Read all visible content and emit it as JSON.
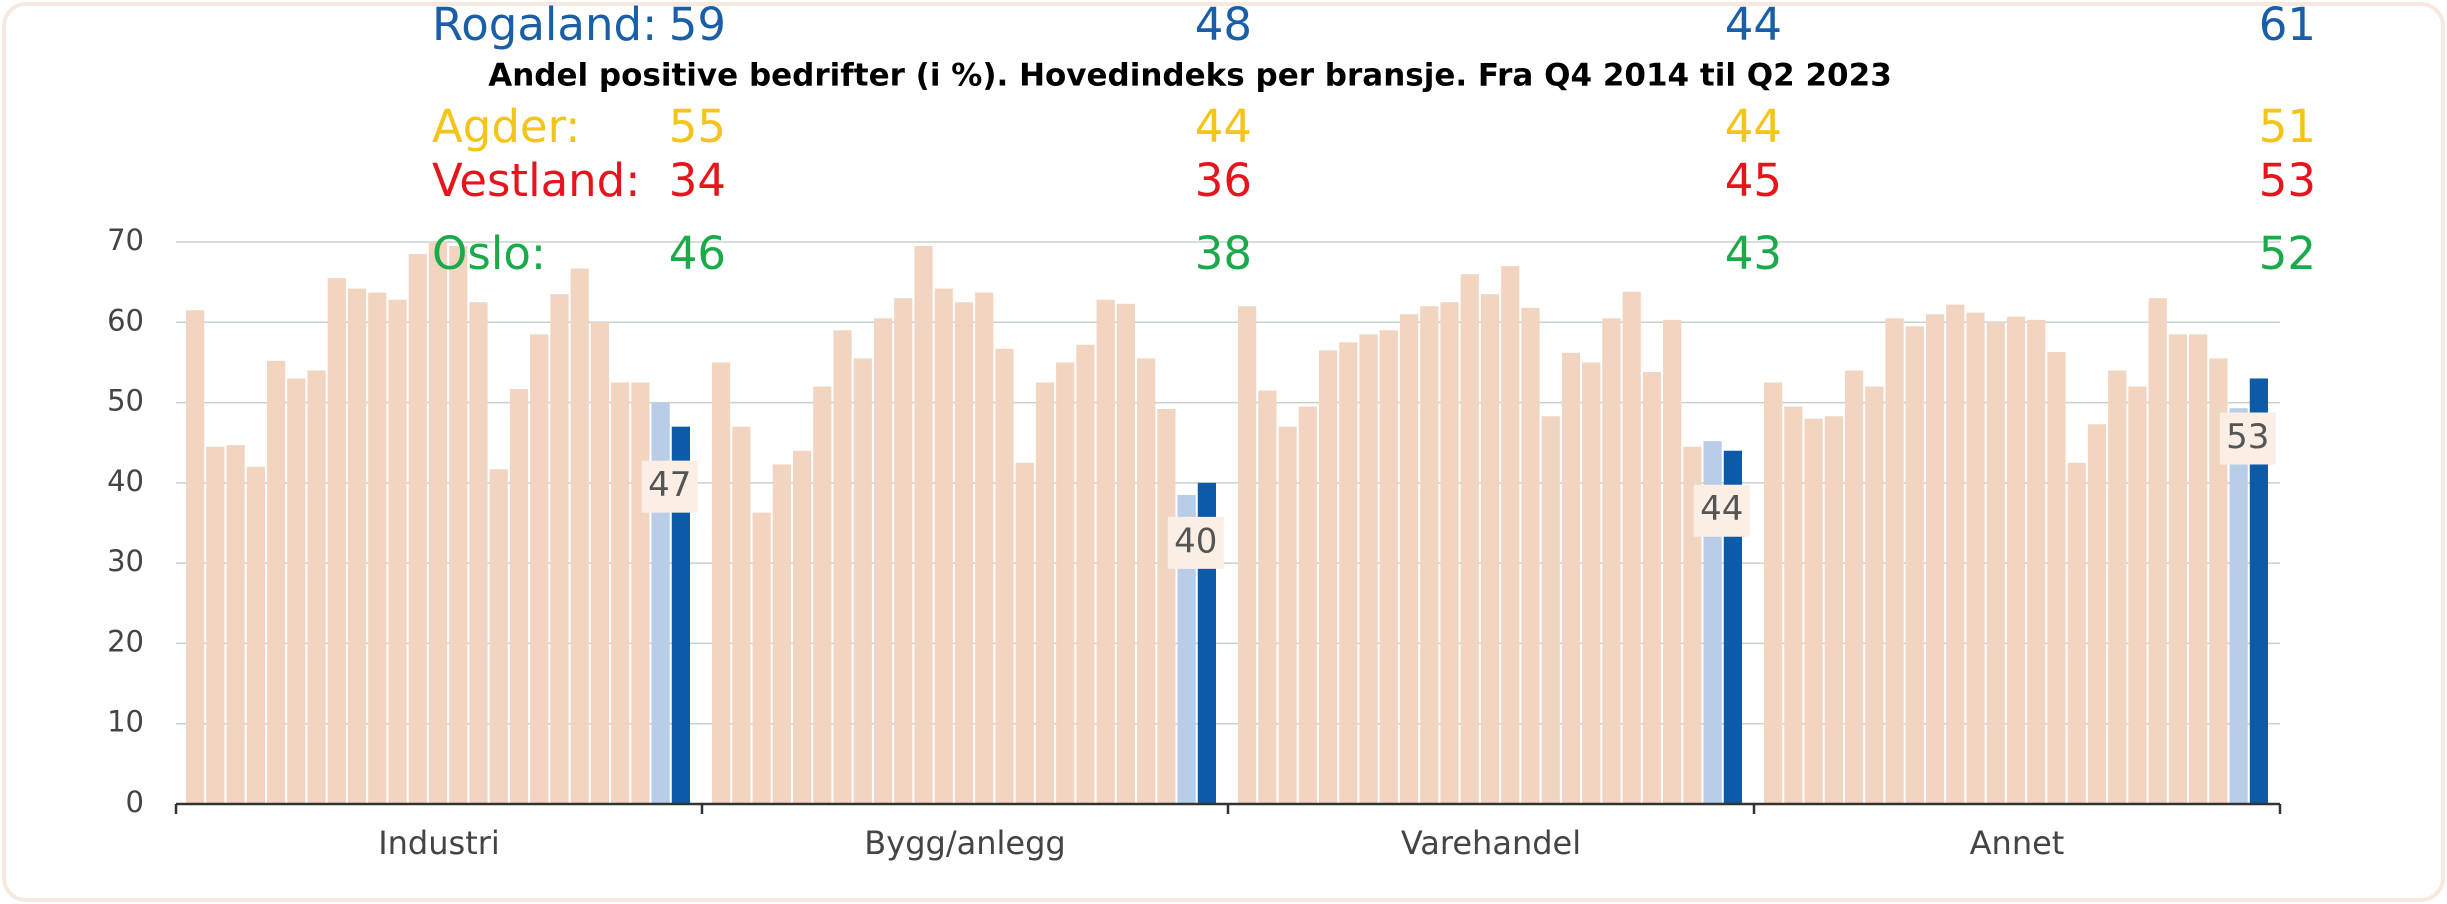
{
  "chart_data": {
    "type": "bar",
    "title": "Andel positive bedrifter (i %). Hovedindeks per bransje. Fra Q4 2014 til Q2 2023",
    "categories": [
      "Industri",
      "Bygg/anlegg",
      "Varehandel",
      "Annet"
    ],
    "groups": [
      {
        "values": [
          61.5,
          44.5,
          44.7,
          42,
          55.2,
          53,
          54,
          65.5,
          64.2,
          63.7,
          62.8,
          68.5,
          70,
          69.5,
          62.5,
          41.7,
          51.7,
          58.5,
          63.5,
          66.7,
          60,
          52.5,
          52.5,
          50,
          47
        ]
      },
      {
        "values": [
          55,
          47,
          36.3,
          42.3,
          44,
          52,
          59,
          55.5,
          60.5,
          63,
          69.5,
          64.2,
          62.5,
          63.7,
          56.7,
          42.5,
          52.5,
          55,
          57.2,
          62.8,
          62.3,
          55.5,
          49.2,
          38.5,
          40
        ]
      },
      {
        "values": [
          62,
          51.5,
          47,
          49.5,
          56.5,
          57.5,
          58.5,
          59,
          61,
          62,
          62.5,
          66,
          63.5,
          67,
          61.8,
          48.3,
          56.2,
          55,
          60.5,
          63.8,
          53.8,
          60.3,
          44.5,
          45.2,
          44
        ]
      },
      {
        "values": [
          52.5,
          49.5,
          48,
          48.3,
          54,
          52,
          60.5,
          59.5,
          61,
          62.2,
          61.2,
          60,
          60.7,
          60.3,
          56.3,
          42.5,
          47.3,
          54,
          52,
          63,
          58.5,
          58.5,
          55.5,
          49.3,
          53
        ]
      }
    ],
    "color": "#f2d5c0",
    "previous_color": "#b8cde8",
    "latest_color": "#0b5ba8",
    "ylim": [
      0,
      70
    ],
    "yticks": [
      0,
      10,
      20,
      30,
      40,
      50,
      60,
      70
    ],
    "grid": true,
    "annotations": [
      {
        "name": "Rogaland:",
        "color": "#1a5ea8",
        "values": [
          "59",
          "48",
          "44",
          "61"
        ]
      },
      {
        "name": "Agder:",
        "color": "#f5c41a",
        "values": [
          "55",
          "44",
          "44",
          "51"
        ]
      },
      {
        "name": "Vestland:",
        "color": "#e8141c",
        "values": [
          "34",
          "36",
          "45",
          "53"
        ]
      },
      {
        "name": "Oslo:",
        "color": "#1aaa4a",
        "values": [
          "46",
          "38",
          "43",
          "52"
        ]
      }
    ]
  }
}
